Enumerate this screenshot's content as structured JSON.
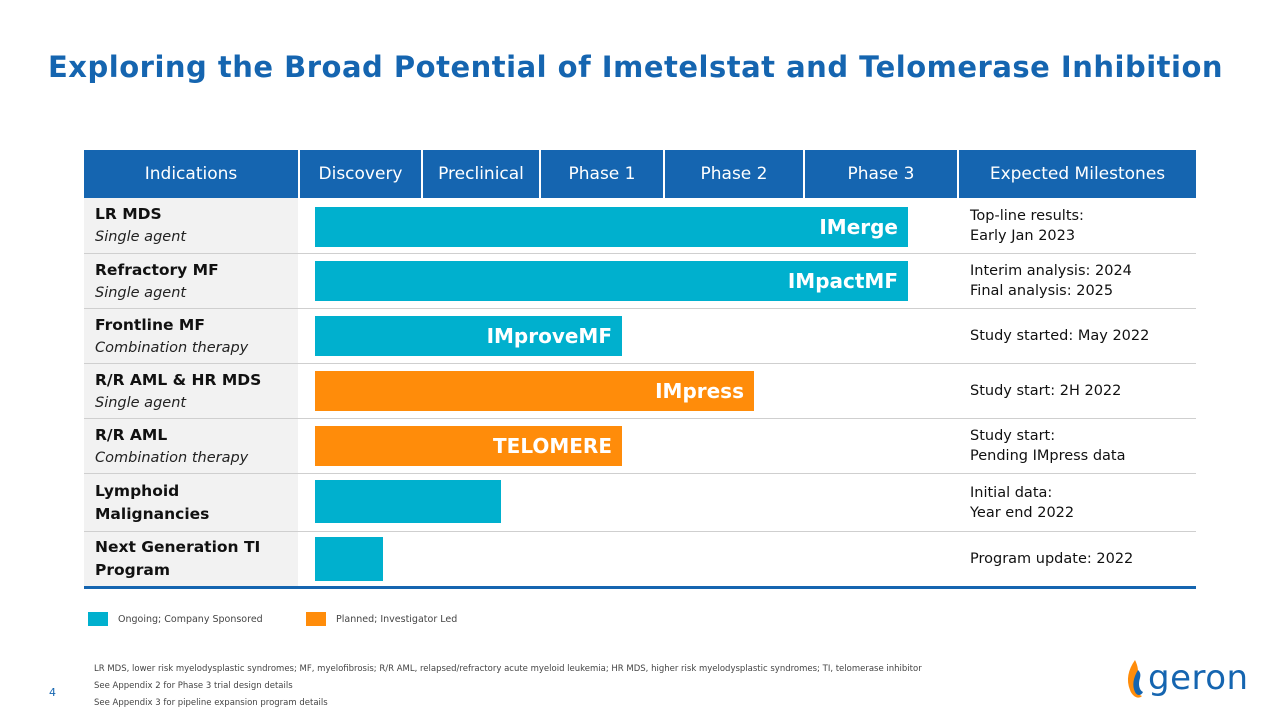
{
  "slide": {
    "title": "Exploring the Broad Potential of Imetelstat and Telomerase Inhibition",
    "page_number": "4"
  },
  "table": {
    "headers": [
      "Indications",
      "Discovery",
      "Preclinical",
      "Phase 1",
      "Phase 2",
      "Phase 3",
      "Expected Milestones"
    ],
    "rows": [
      {
        "name": "LR MDS",
        "sub": "Single agent",
        "program": "IMerge",
        "status": "ongoing",
        "reaches": "Phase 3",
        "milestone": [
          "Top-line results:",
          "Early Jan 2023"
        ]
      },
      {
        "name": "Refractory MF",
        "sub": "Single agent",
        "program": "IMpactMF",
        "status": "ongoing",
        "reaches": "Phase 3",
        "milestone": [
          "Interim analysis: 2024",
          "Final analysis: 2025"
        ]
      },
      {
        "name": "Frontline MF",
        "sub": "Combination therapy",
        "program": "IMproveMF",
        "status": "ongoing",
        "reaches": "Phase 1",
        "milestone": [
          "Study started: May 2022"
        ]
      },
      {
        "name": "R/R AML & HR MDS",
        "sub": "Single agent",
        "program": "IMpress",
        "status": "planned",
        "reaches": "Phase 2",
        "milestone": [
          "Study start: 2H 2022"
        ]
      },
      {
        "name": "R/R AML",
        "sub": "Combination therapy",
        "program": "TELOMERE",
        "status": "planned",
        "reaches": "Phase 1",
        "milestone": [
          "Study start:",
          "Pending IMpress data"
        ]
      },
      {
        "name": "Lymphoid Malignancies",
        "sub": "",
        "program": "",
        "status": "ongoing",
        "reaches": "Preclinical",
        "milestone": [
          "Initial data:",
          "Year end 2022"
        ]
      },
      {
        "name": "Next Generation TI Program",
        "sub": "",
        "program": "",
        "status": "ongoing",
        "reaches": "Discovery",
        "milestone": [
          "Program update: 2022"
        ]
      }
    ]
  },
  "legend": [
    {
      "label": "Ongoing; Company Sponsored",
      "color": "#00b0ce"
    },
    {
      "label": "Planned; Investigator Led",
      "color": "#ff8c0a"
    }
  ],
  "footnotes": [
    "LR MDS, lower risk myelodysplastic syndromes; MF, myelofibrosis; R/R AML, relapsed/refractory acute myeloid leukemia; HR MDS, higher risk myelodysplastic syndromes; TI, telomerase inhibitor",
    "See Appendix 2 for Phase 3 trial design details",
    "See Appendix 3 for pipeline expansion program details"
  ],
  "logo": {
    "text": "geron",
    "icon": "flame-icon"
  },
  "colors": {
    "brand_blue": "#1565b0",
    "ongoing": "#00b0ce",
    "planned": "#ff8c0a"
  }
}
